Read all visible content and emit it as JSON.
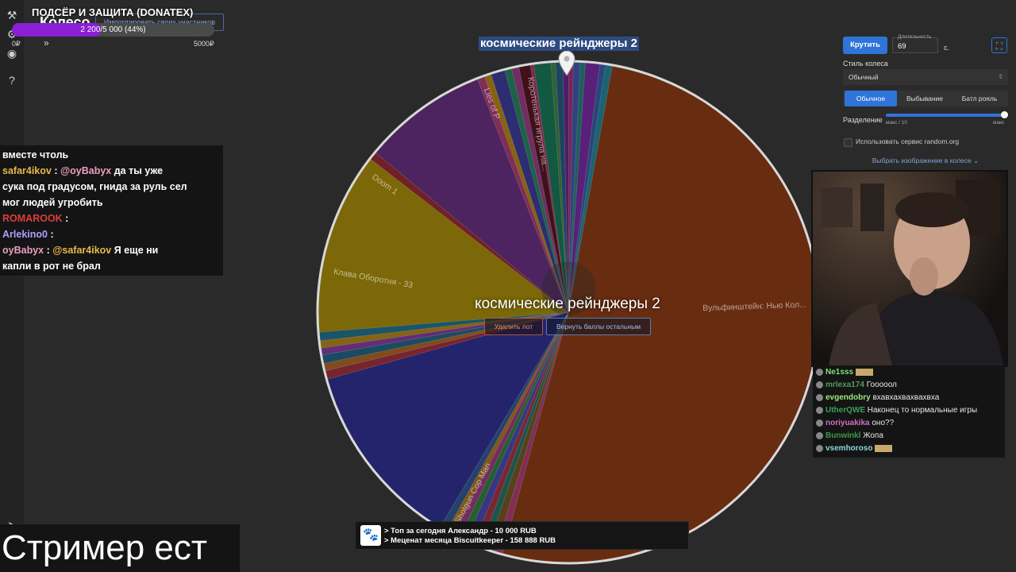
{
  "page": {
    "title": "Колесо",
    "import_button": "Импортировать своих участников"
  },
  "donation": {
    "title": "ПОДСЁР И ЗАЩИТА (DONATEX)",
    "progress_text": "2 200/5 000 (44%)",
    "progress_fraction": 0.44,
    "min_label": "0₽",
    "max_label": "5000₽",
    "arrow": "»"
  },
  "chat_left": [
    {
      "segments": [
        {
          "text": "вместе чтоль",
          "color": "#ffffff"
        }
      ]
    },
    {
      "segments": [
        {
          "text": "safar4ikov",
          "color": "#e8b84a"
        },
        {
          "text": " : ",
          "color": "#ffffff"
        },
        {
          "text": "@oyBabyx",
          "color": "#e8a0c0"
        },
        {
          "text": " да ты уже",
          "color": "#ffffff"
        }
      ]
    },
    {
      "segments": [
        {
          "text": "сука под градусом, гнида за руль сел",
          "color": "#ffffff"
        }
      ]
    },
    {
      "segments": [
        {
          "text": "мог людей угробить",
          "color": "#ffffff"
        }
      ]
    },
    {
      "segments": [
        {
          "text": "ROMAROOK",
          "color": "#e03c3c"
        },
        {
          "text": " : ",
          "color": "#ffffff"
        }
      ]
    },
    {
      "segments": [
        {
          "text": "Arlekino0",
          "color": "#b39dff"
        },
        {
          "text": " : ",
          "color": "#ffffff"
        }
      ]
    },
    {
      "segments": [
        {
          "text": "oyBabyx",
          "color": "#e8a0c0"
        },
        {
          "text": " : ",
          "color": "#ffffff"
        },
        {
          "text": "@safar4ikov",
          "color": "#e8b84a"
        },
        {
          "text": " Я еще ни",
          "color": "#ffffff"
        }
      ]
    },
    {
      "segments": [
        {
          "text": "капли в рот не брал",
          "color": "#ffffff"
        }
      ]
    }
  ],
  "subtitle": "Стример ест",
  "wheel": {
    "winner_title": "космические рейнджеры 2",
    "center_text": "космические рейнджеры 2",
    "delete_button": "Удалить лот",
    "return_button": "Вернуть баллы остальным",
    "labels": [
      {
        "text": "Вульфинштейн: Нью Кол...",
        "angle": 88
      },
      {
        "text": "Shotgun Cop Man",
        "angle": 208
      },
      {
        "text": "Клава Оборотня - 33",
        "angle": 280
      },
      {
        "text": "Doom 1",
        "angle": 305
      },
      {
        "text": "Lies of P",
        "angle": 340
      },
      {
        "text": "Коротенькая игрула на...",
        "angle": 351
      }
    ],
    "segments": [
      {
        "size": 0.8,
        "color": "#4e9e52"
      },
      {
        "size": 1.3,
        "color": "#2f6e9a"
      },
      {
        "size": 1.0,
        "color": "#7a2fa8"
      },
      {
        "size": 0.8,
        "color": "#c8368a"
      },
      {
        "size": 1.2,
        "color": "#4d6bd0"
      },
      {
        "size": 0.9,
        "color": "#2a9d8f"
      },
      {
        "size": 2.5,
        "color": "#8e35c4"
      },
      {
        "size": 1.0,
        "color": "#4470c8"
      },
      {
        "size": 1.2,
        "color": "#2aa0b8"
      },
      {
        "size": 140.0,
        "color": "#a8471a"
      },
      {
        "size": 1.3,
        "color": "#d04a8a"
      },
      {
        "size": 1.5,
        "color": "#8e6a2a"
      },
      {
        "size": 1.2,
        "color": "#2a8a7a"
      },
      {
        "size": 1.3,
        "color": "#c04050"
      },
      {
        "size": 1.5,
        "color": "#5a5ad0"
      },
      {
        "size": 1.2,
        "color": "#3a9a4a"
      },
      {
        "size": 1.3,
        "color": "#b84a9a"
      },
      {
        "size": 1.2,
        "color": "#d48a2a"
      },
      {
        "size": 1.3,
        "color": "#3a6ab0"
      },
      {
        "size": 33.0,
        "color": "#3a3ab0"
      },
      {
        "size": 1.5,
        "color": "#c23a4a"
      },
      {
        "size": 1.3,
        "color": "#d07a30"
      },
      {
        "size": 1.5,
        "color": "#2a7aa0"
      },
      {
        "size": 1.2,
        "color": "#a04ac0"
      },
      {
        "size": 1.3,
        "color": "#d8a020"
      },
      {
        "size": 1.5,
        "color": "#2a8aa8"
      },
      {
        "size": 32.0,
        "color": "#c9a80e"
      },
      {
        "size": 1.4,
        "color": "#b8323e"
      },
      {
        "size": 22.0,
        "color": "#7c3a9a"
      },
      {
        "size": 1.3,
        "color": "#d04a8a"
      },
      {
        "size": 1.2,
        "color": "#d8a020"
      },
      {
        "size": 2.5,
        "color": "#4a4ab8"
      },
      {
        "size": 1.2,
        "color": "#2aa070"
      },
      {
        "size": 1.3,
        "color": "#b84aa0"
      },
      {
        "size": 2.0,
        "color": "#6a1a2a"
      },
      {
        "size": 0.6,
        "color": "#d04080"
      },
      {
        "size": 3.0,
        "color": "#1f8f6a"
      }
    ]
  },
  "controls": {
    "spin_button": "Крутить",
    "duration_label": "Длительность",
    "duration_value": "69",
    "duration_unit": "с.",
    "style_label": "Стиль колеса",
    "style_value": "Обычный",
    "modes": [
      {
        "label": "Обычное",
        "active": true
      },
      {
        "label": "Выбывание",
        "active": false
      },
      {
        "label": "Батл рояль",
        "active": false
      }
    ],
    "split_label": "Разделение",
    "split_min": "макс / 10",
    "split_max": "макс",
    "split_fraction": 1.0,
    "random_org": "Использовать сервис random.org",
    "image_link": "Выбрать изображение в колесе"
  },
  "chat_right": [
    {
      "user": "Ne1sss",
      "color": "#7be07b",
      "msg": "",
      "emote": true
    },
    {
      "user": "mrlexa174",
      "color": "#4e9e5a",
      "msg": "Гооооол",
      "emote": false
    },
    {
      "user": "evgendobry",
      "color": "#9be87b",
      "msg": "вхавхахвахвахвха",
      "emote": false
    },
    {
      "user": "UtherQWE",
      "color": "#3aa05a",
      "msg": "Наконец то нормальные игры",
      "emote": false
    },
    {
      "user": "noriyuakika",
      "color": "#d070c0",
      "msg": "оно??",
      "emote": false
    },
    {
      "user": "Bunwinkl",
      "color": "#3a9a4a",
      "msg": "Жопа",
      "emote": false
    },
    {
      "user": "vsemhoroso",
      "color": "#8ad8d8",
      "msg": "",
      "emote": true
    }
  ],
  "banner": {
    "line1": "> Топ за сегодня Александр - 10 000 RUB",
    "line2": "> Меценат месяца Biscuitkeeper - 158 888 RUB"
  }
}
